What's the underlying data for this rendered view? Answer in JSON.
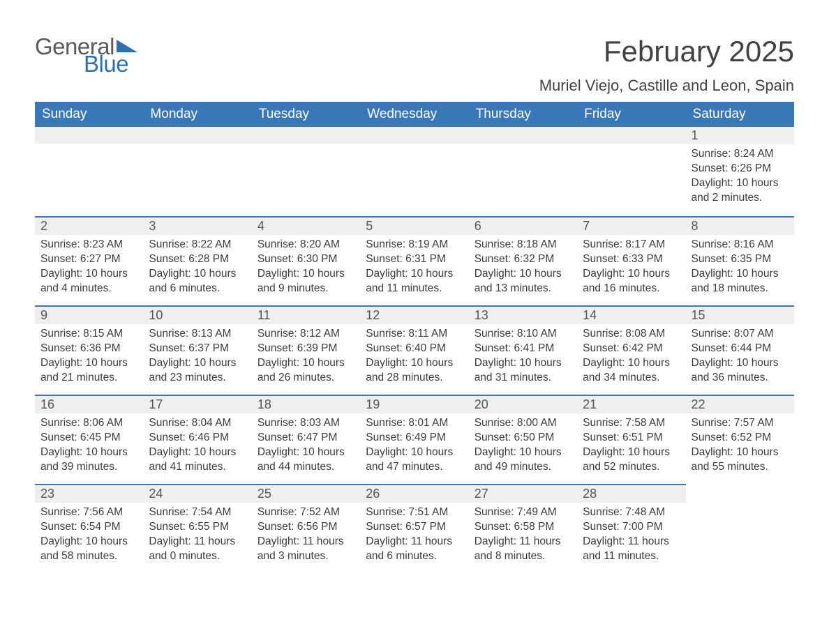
{
  "logo": {
    "word1": "General",
    "word2": "Blue",
    "tri_color": "#2f6fb0"
  },
  "title": "February 2025",
  "location": "Muriel Viejo, Castille and Leon, Spain",
  "colors": {
    "header_bg": "#3a77b6",
    "header_text": "#ffffff",
    "daynum_bg": "#efefef",
    "row_border": "#3a77b6",
    "body_text": "#3c3c3c",
    "title_text": "#424242"
  },
  "weekdays": [
    "Sunday",
    "Monday",
    "Tuesday",
    "Wednesday",
    "Thursday",
    "Friday",
    "Saturday"
  ],
  "labels": {
    "sunrise": "Sunrise:",
    "sunset": "Sunset:",
    "daylight": "Daylight:"
  },
  "weeks": [
    [
      null,
      null,
      null,
      null,
      null,
      null,
      {
        "n": "1",
        "sunrise": "8:24 AM",
        "sunset": "6:26 PM",
        "daylight": "10 hours and 2 minutes."
      }
    ],
    [
      {
        "n": "2",
        "sunrise": "8:23 AM",
        "sunset": "6:27 PM",
        "daylight": "10 hours and 4 minutes."
      },
      {
        "n": "3",
        "sunrise": "8:22 AM",
        "sunset": "6:28 PM",
        "daylight": "10 hours and 6 minutes."
      },
      {
        "n": "4",
        "sunrise": "8:20 AM",
        "sunset": "6:30 PM",
        "daylight": "10 hours and 9 minutes."
      },
      {
        "n": "5",
        "sunrise": "8:19 AM",
        "sunset": "6:31 PM",
        "daylight": "10 hours and 11 minutes."
      },
      {
        "n": "6",
        "sunrise": "8:18 AM",
        "sunset": "6:32 PM",
        "daylight": "10 hours and 13 minutes."
      },
      {
        "n": "7",
        "sunrise": "8:17 AM",
        "sunset": "6:33 PM",
        "daylight": "10 hours and 16 minutes."
      },
      {
        "n": "8",
        "sunrise": "8:16 AM",
        "sunset": "6:35 PM",
        "daylight": "10 hours and 18 minutes."
      }
    ],
    [
      {
        "n": "9",
        "sunrise": "8:15 AM",
        "sunset": "6:36 PM",
        "daylight": "10 hours and 21 minutes."
      },
      {
        "n": "10",
        "sunrise": "8:13 AM",
        "sunset": "6:37 PM",
        "daylight": "10 hours and 23 minutes."
      },
      {
        "n": "11",
        "sunrise": "8:12 AM",
        "sunset": "6:39 PM",
        "daylight": "10 hours and 26 minutes."
      },
      {
        "n": "12",
        "sunrise": "8:11 AM",
        "sunset": "6:40 PM",
        "daylight": "10 hours and 28 minutes."
      },
      {
        "n": "13",
        "sunrise": "8:10 AM",
        "sunset": "6:41 PM",
        "daylight": "10 hours and 31 minutes."
      },
      {
        "n": "14",
        "sunrise": "8:08 AM",
        "sunset": "6:42 PM",
        "daylight": "10 hours and 34 minutes."
      },
      {
        "n": "15",
        "sunrise": "8:07 AM",
        "sunset": "6:44 PM",
        "daylight": "10 hours and 36 minutes."
      }
    ],
    [
      {
        "n": "16",
        "sunrise": "8:06 AM",
        "sunset": "6:45 PM",
        "daylight": "10 hours and 39 minutes."
      },
      {
        "n": "17",
        "sunrise": "8:04 AM",
        "sunset": "6:46 PM",
        "daylight": "10 hours and 41 minutes."
      },
      {
        "n": "18",
        "sunrise": "8:03 AM",
        "sunset": "6:47 PM",
        "daylight": "10 hours and 44 minutes."
      },
      {
        "n": "19",
        "sunrise": "8:01 AM",
        "sunset": "6:49 PM",
        "daylight": "10 hours and 47 minutes."
      },
      {
        "n": "20",
        "sunrise": "8:00 AM",
        "sunset": "6:50 PM",
        "daylight": "10 hours and 49 minutes."
      },
      {
        "n": "21",
        "sunrise": "7:58 AM",
        "sunset": "6:51 PM",
        "daylight": "10 hours and 52 minutes."
      },
      {
        "n": "22",
        "sunrise": "7:57 AM",
        "sunset": "6:52 PM",
        "daylight": "10 hours and 55 minutes."
      }
    ],
    [
      {
        "n": "23",
        "sunrise": "7:56 AM",
        "sunset": "6:54 PM",
        "daylight": "10 hours and 58 minutes."
      },
      {
        "n": "24",
        "sunrise": "7:54 AM",
        "sunset": "6:55 PM",
        "daylight": "11 hours and 0 minutes."
      },
      {
        "n": "25",
        "sunrise": "7:52 AM",
        "sunset": "6:56 PM",
        "daylight": "11 hours and 3 minutes."
      },
      {
        "n": "26",
        "sunrise": "7:51 AM",
        "sunset": "6:57 PM",
        "daylight": "11 hours and 6 minutes."
      },
      {
        "n": "27",
        "sunrise": "7:49 AM",
        "sunset": "6:58 PM",
        "daylight": "11 hours and 8 minutes."
      },
      {
        "n": "28",
        "sunrise": "7:48 AM",
        "sunset": "7:00 PM",
        "daylight": "11 hours and 11 minutes."
      },
      null
    ]
  ]
}
